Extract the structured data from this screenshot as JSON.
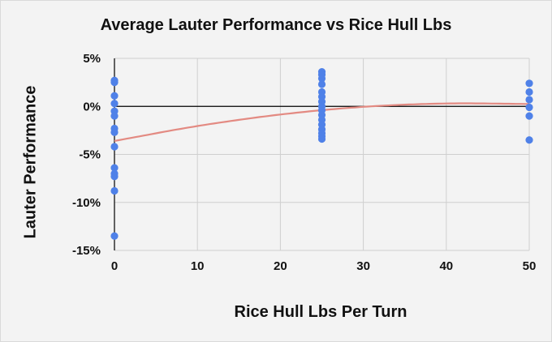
{
  "chart_data": {
    "type": "scatter",
    "title": "Average Lauter Performance vs Rice Hull Lbs",
    "xlabel": "Rice Hull Lbs Per Turn",
    "ylabel": "Lauter Performance",
    "xlim": [
      0,
      50
    ],
    "ylim": [
      -15,
      5
    ],
    "x_ticks": [
      {
        "value": 0,
        "label": "0"
      },
      {
        "value": 10,
        "label": "10"
      },
      {
        "value": 20,
        "label": "20"
      },
      {
        "value": 30,
        "label": "30"
      },
      {
        "value": 40,
        "label": "40"
      },
      {
        "value": 50,
        "label": "50"
      }
    ],
    "y_ticks": [
      {
        "value": 5,
        "label": "5%"
      },
      {
        "value": 0,
        "label": "0%"
      },
      {
        "value": -5,
        "label": "-5%"
      },
      {
        "value": -10,
        "label": "-10%"
      },
      {
        "value": -15,
        "label": "-15%"
      }
    ],
    "grid": true,
    "points": [
      {
        "x": 0,
        "y": 2.7
      },
      {
        "x": 0,
        "y": 2.5
      },
      {
        "x": 0,
        "y": 1.1
      },
      {
        "x": 0,
        "y": 0.3
      },
      {
        "x": 0,
        "y": -0.5
      },
      {
        "x": 0,
        "y": -1.0
      },
      {
        "x": 0,
        "y": -2.3
      },
      {
        "x": 0,
        "y": -2.7
      },
      {
        "x": 0,
        "y": -4.2
      },
      {
        "x": 0,
        "y": -6.4
      },
      {
        "x": 0,
        "y": -7.0
      },
      {
        "x": 0,
        "y": -7.3
      },
      {
        "x": 0,
        "y": -8.8
      },
      {
        "x": 0,
        "y": -13.5
      },
      {
        "x": 25,
        "y": 3.6
      },
      {
        "x": 25,
        "y": 3.3
      },
      {
        "x": 25,
        "y": 2.9
      },
      {
        "x": 25,
        "y": 2.3
      },
      {
        "x": 25,
        "y": 1.5
      },
      {
        "x": 25,
        "y": 1.0
      },
      {
        "x": 25,
        "y": 0.5
      },
      {
        "x": 25,
        "y": 0.0
      },
      {
        "x": 25,
        "y": -0.4
      },
      {
        "x": 25,
        "y": -0.9
      },
      {
        "x": 25,
        "y": -1.4
      },
      {
        "x": 25,
        "y": -1.9
      },
      {
        "x": 25,
        "y": -2.4
      },
      {
        "x": 25,
        "y": -2.8
      },
      {
        "x": 25,
        "y": -3.1
      },
      {
        "x": 25,
        "y": -3.4
      },
      {
        "x": 50,
        "y": 2.4
      },
      {
        "x": 50,
        "y": 1.5
      },
      {
        "x": 50,
        "y": 0.7
      },
      {
        "x": 50,
        "y": -0.1
      },
      {
        "x": 50,
        "y": -1.0
      },
      {
        "x": 50,
        "y": -3.5
      }
    ],
    "trendline": {
      "type": "polynomial",
      "x": [
        0,
        10,
        20,
        30,
        40,
        50
      ],
      "y": [
        -3.6,
        -2.05,
        -0.85,
        -0.05,
        0.3,
        0.25
      ]
    },
    "colors": {
      "points": "#4f81e8",
      "trendline": "#e38a82",
      "grid": "#cfcfcf",
      "axis": "#000000",
      "background": "#f3f3f3"
    }
  }
}
